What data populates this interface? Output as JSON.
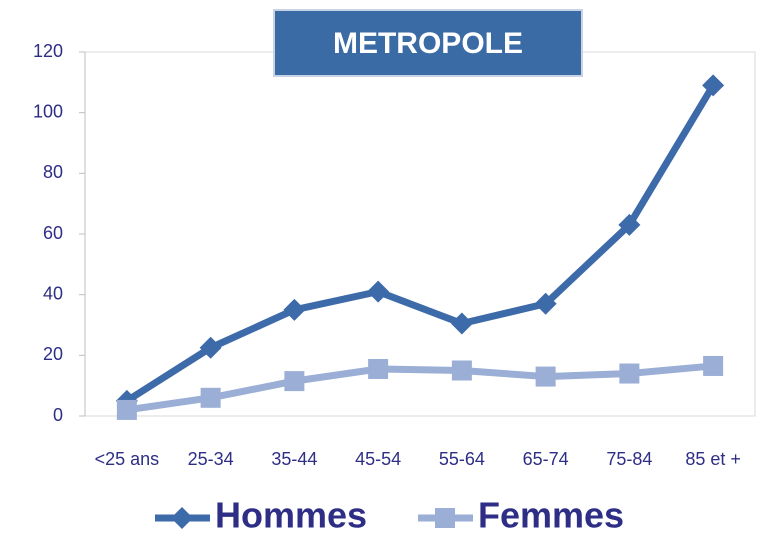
{
  "chart_data": {
    "type": "line",
    "title": "METROPOLE",
    "categories": [
      "<25 ans",
      "25-34",
      "35-44",
      "45-54",
      "55-64",
      "65-74",
      "75-84",
      "85 et +"
    ],
    "series": [
      {
        "name": "Hommes",
        "color": "#3d6aa8",
        "marker": "diamond",
        "values": [
          5,
          22.5,
          35,
          41,
          30.5,
          37,
          63,
          109
        ]
      },
      {
        "name": "Femmes",
        "color": "#9aaed6",
        "marker": "square",
        "values": [
          2,
          6,
          11.5,
          15.5,
          15,
          13,
          14,
          16.5
        ]
      }
    ],
    "ylim": [
      0,
      120
    ],
    "yticks": [
      0,
      20,
      40,
      60,
      80,
      100,
      120
    ],
    "grid": false,
    "legend": "bottom"
  }
}
